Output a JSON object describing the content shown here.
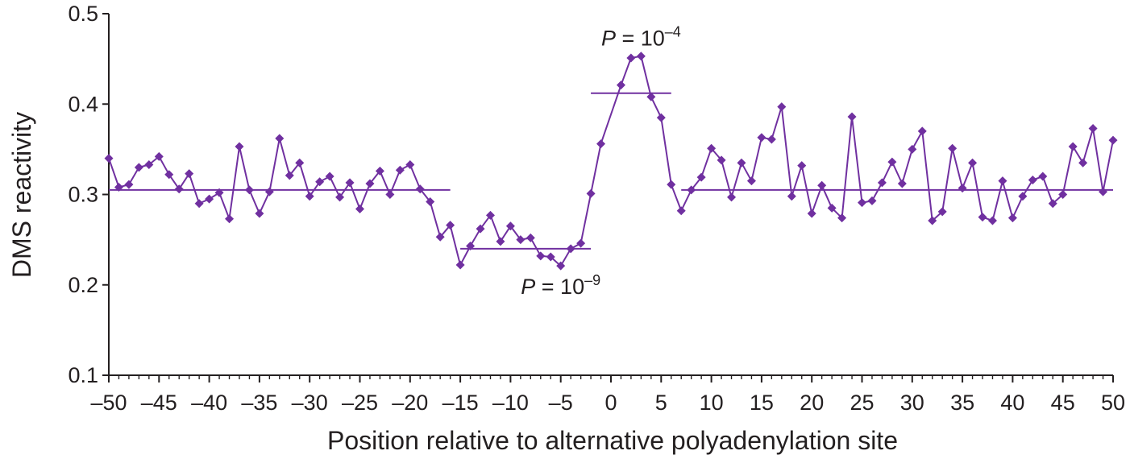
{
  "chart_data": {
    "type": "line",
    "xlabel": "Position relative to alternative polyadenylation site",
    "ylabel": "DMS reactivity",
    "xlim": [
      -50,
      50
    ],
    "ylim": [
      0.1,
      0.5
    ],
    "x_ticks": [
      "–50",
      "–45",
      "–40",
      "–35",
      "–30",
      "–25",
      "–20",
      "–15",
      "–10",
      "–5",
      "0",
      "5",
      "10",
      "15",
      "20",
      "25",
      "30",
      "35",
      "40",
      "45",
      "50"
    ],
    "y_ticks": [
      "0.1",
      "0.2",
      "0.3",
      "0.4",
      "0.5"
    ],
    "grid": false,
    "color": "#7030a0",
    "series": [
      {
        "x": [
          -50,
          -49,
          -48,
          -47,
          -46,
          -45,
          -44,
          -43,
          -42,
          -41,
          -40,
          -39,
          -38,
          -37,
          -36,
          -35,
          -34,
          -33,
          -32,
          -31,
          -30,
          -29,
          -28,
          -27,
          -26,
          -25,
          -24,
          -23,
          -22,
          -21,
          -20,
          -19,
          -18,
          -17,
          -16,
          -15,
          -14,
          -13,
          -12,
          -11,
          -10,
          -9,
          -8,
          -7,
          -6,
          -5,
          -4,
          -3,
          -2,
          -1,
          1,
          2,
          3,
          4,
          5,
          6,
          7,
          8,
          9,
          10,
          11,
          12,
          13,
          14,
          15,
          16,
          17,
          18,
          19,
          20,
          21,
          22,
          23,
          24,
          25,
          26,
          27,
          28,
          29,
          30,
          31,
          32,
          33,
          34,
          35,
          36,
          37,
          38,
          39,
          40,
          41,
          42,
          43,
          44,
          45,
          46,
          47,
          48,
          49,
          50
        ],
        "y": [
          0.34,
          0.308,
          0.311,
          0.33,
          0.333,
          0.342,
          0.322,
          0.306,
          0.323,
          0.29,
          0.295,
          0.302,
          0.273,
          0.353,
          0.305,
          0.279,
          0.303,
          0.362,
          0.321,
          0.335,
          0.298,
          0.314,
          0.32,
          0.297,
          0.313,
          0.284,
          0.312,
          0.326,
          0.3,
          0.327,
          0.333,
          0.306,
          0.292,
          0.253,
          0.266,
          0.222,
          0.243,
          0.262,
          0.277,
          0.248,
          0.265,
          0.25,
          0.252,
          0.232,
          0.231,
          0.221,
          0.24,
          0.246,
          0.301,
          0.356,
          0.421,
          0.451,
          0.453,
          0.408,
          0.385,
          0.311,
          0.282,
          0.305,
          0.319,
          0.351,
          0.338,
          0.297,
          0.335,
          0.315,
          0.363,
          0.361,
          0.397,
          0.298,
          0.332,
          0.279,
          0.31,
          0.285,
          0.274,
          0.386,
          0.291,
          0.293,
          0.313,
          0.336,
          0.312,
          0.35,
          0.37,
          0.271,
          0.281,
          0.351,
          0.307,
          0.335,
          0.275,
          0.271,
          0.315,
          0.274,
          0.298,
          0.316,
          0.32,
          0.29,
          0.3,
          0.353,
          0.335,
          0.373,
          0.303,
          0.36
        ]
      }
    ],
    "mean_lines": [
      {
        "x_start": -50,
        "x_end": -16,
        "y": 0.305
      },
      {
        "x_start": -15,
        "x_end": -2,
        "y": 0.24
      },
      {
        "x_start": -2,
        "x_end": 6,
        "y": 0.412
      },
      {
        "x_start": 7,
        "x_end": 50,
        "y": 0.305
      }
    ],
    "annotations": [
      {
        "italic": "P",
        "text": " = 10",
        "exponent": "–4",
        "x": 3,
        "y": 0.465
      },
      {
        "italic": "P",
        "text": " = 10",
        "exponent": "–9",
        "x": -5,
        "y": 0.19
      }
    ]
  }
}
